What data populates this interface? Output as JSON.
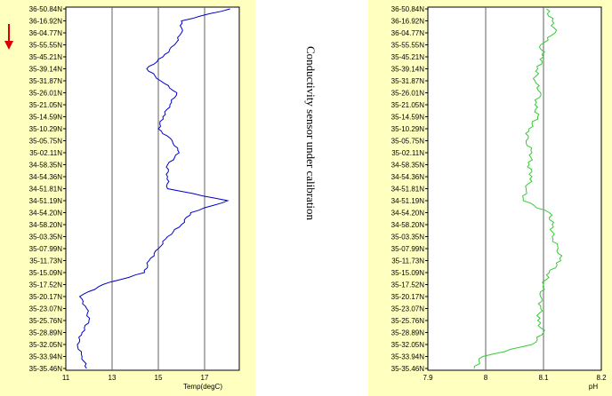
{
  "annotation": "Conductivity sensor under calibration",
  "colors": {
    "panel_bg": "#ffffc0",
    "plot_bg": "#ffffff",
    "grid": "#606060",
    "arrow": "#dd0000"
  },
  "chart_data": [
    {
      "type": "line",
      "series_color": "#0000cc",
      "xlabel": "Temp(degC)",
      "xlim": [
        11,
        18.5
      ],
      "xticks": [
        11,
        13,
        15,
        17
      ],
      "grid": "vertical",
      "categories": [
        "36-50.84N",
        "36-16.92N",
        "36-04.77N",
        "35-55.55N",
        "35-45.21N",
        "35-39.14N",
        "35-31.87N",
        "35-26.01N",
        "35-21.05N",
        "35-14.59N",
        "35-10.29N",
        "35-05.75N",
        "35-02.11N",
        "34-58.35N",
        "34-54.36N",
        "34-51.81N",
        "34-51.19N",
        "34-54.20N",
        "34-58.20N",
        "35-03.35N",
        "35-07.99N",
        "35-11.73N",
        "35-15.09N",
        "35-17.52N",
        "35-20.17N",
        "35-23.07N",
        "35-25.76N",
        "35-28.89N",
        "35-32.05N",
        "35-33.94N",
        "35-35.46N"
      ],
      "values": [
        18.1,
        16.0,
        16.0,
        15.7,
        15.2,
        14.5,
        15.1,
        15.8,
        15.5,
        15.2,
        15.0,
        15.6,
        15.9,
        15.4,
        15.4,
        15.4,
        18.0,
        16.4,
        16.0,
        15.4,
        15.0,
        14.6,
        14.4,
        12.6,
        11.6,
        11.9,
        12.0,
        11.7,
        11.5,
        11.7,
        11.9
      ]
    },
    {
      "type": "line",
      "series_color": "#33cc33",
      "xlabel": "pH",
      "xlim": [
        7.9,
        8.2
      ],
      "xticks": [
        7.9,
        8,
        8.1,
        8.2
      ],
      "grid": "vertical",
      "categories": [
        "36-50.84N",
        "36-16.92N",
        "36-04.77N",
        "35-55.55N",
        "35-45.21N",
        "35-39.14N",
        "35-31.87N",
        "35-26.01N",
        "35-21.05N",
        "35-14.59N",
        "35-10.29N",
        "35-05.75N",
        "35-02.11N",
        "34-58.35N",
        "34-54.36N",
        "34-51.81N",
        "34-51.19N",
        "34-54.20N",
        "34-58.20N",
        "35-03.35N",
        "35-07.99N",
        "35-11.73N",
        "35-15.09N",
        "35-17.52N",
        "35-20.17N",
        "35-23.07N",
        "35-25.76N",
        "35-28.89N",
        "35-32.05N",
        "35-33.94N",
        "35-35.46N"
      ],
      "values": [
        8.105,
        8.115,
        8.12,
        8.095,
        8.1,
        8.09,
        8.085,
        8.095,
        8.085,
        8.09,
        8.075,
        8.07,
        8.08,
        8.075,
        8.08,
        8.07,
        8.065,
        8.11,
        8.115,
        8.115,
        8.125,
        8.13,
        8.11,
        8.1,
        8.095,
        8.095,
        8.09,
        8.1,
        8.08,
        7.995,
        7.98
      ]
    }
  ]
}
